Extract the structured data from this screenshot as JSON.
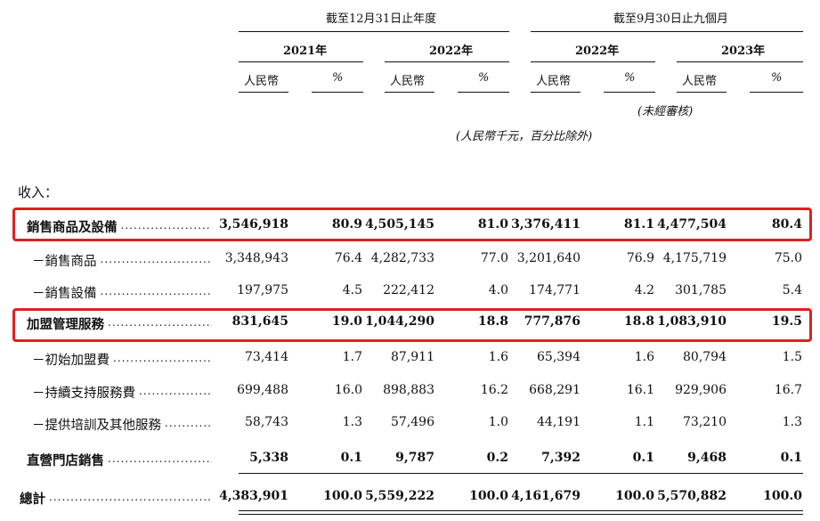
{
  "header": {
    "group1": "截至12月31日止年度",
    "group2": "截至9月30日止九個月",
    "years": [
      "2021年",
      "2022年",
      "2022年",
      "2023年"
    ],
    "currency": "人民幣",
    "pct": "%",
    "unaudited": "(未經審核)",
    "unit_note": "(人民幣千元，百分比除外)"
  },
  "section_label": "收入：",
  "rows": [
    {
      "label": "銷售商品及設備",
      "bold": true,
      "values": [
        "3,546,918",
        "80.9",
        "4,505,145",
        "81.0",
        "3,376,411",
        "81.1",
        "4,477,504",
        "80.4"
      ]
    },
    {
      "label": "－銷售商品",
      "bold": false,
      "values": [
        "3,348,943",
        "76.4",
        "4,282,733",
        "77.0",
        "3,201,640",
        "76.9",
        "4,175,719",
        "75.0"
      ]
    },
    {
      "label": "－銷售設備",
      "bold": false,
      "values": [
        "197,975",
        "4.5",
        "222,412",
        "4.0",
        "174,771",
        "4.2",
        "301,785",
        "5.4"
      ]
    },
    {
      "label": "加盟管理服務",
      "bold": true,
      "values": [
        "831,645",
        "19.0",
        "1,044,290",
        "18.8",
        "777,876",
        "18.8",
        "1,083,910",
        "19.5"
      ]
    },
    {
      "label": "－初始加盟費",
      "bold": false,
      "values": [
        "73,414",
        "1.7",
        "87,911",
        "1.6",
        "65,394",
        "1.6",
        "80,794",
        "1.5"
      ]
    },
    {
      "label": "－持續支持服務費",
      "bold": false,
      "values": [
        "699,488",
        "16.0",
        "898,883",
        "16.2",
        "668,291",
        "16.1",
        "929,906",
        "16.7"
      ]
    },
    {
      "label": "－提供培訓及其他服務",
      "bold": false,
      "values": [
        "58,743",
        "1.3",
        "57,496",
        "1.0",
        "44,191",
        "1.1",
        "73,210",
        "1.3"
      ]
    },
    {
      "label": "直營門店銷售",
      "bold": true,
      "values": [
        "5,338",
        "0.1",
        "9,787",
        "0.2",
        "7,392",
        "0.1",
        "9,468",
        "0.1"
      ]
    },
    {
      "label": "總計",
      "bold": true,
      "values": [
        "4,383,901",
        "100.0",
        "5,559,222",
        "100.0",
        "4,161,679",
        "100.0",
        "5,570,882",
        "100.0"
      ]
    }
  ],
  "highlight_color": "#e02020"
}
